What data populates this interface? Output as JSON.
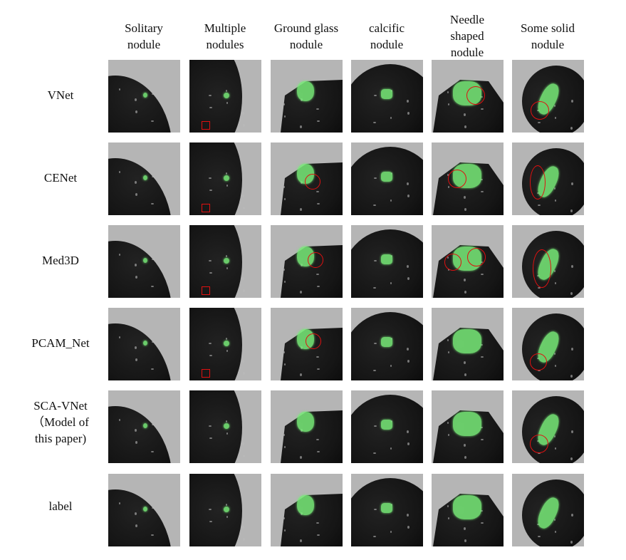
{
  "columns": [
    {
      "line1": "Solitary",
      "line2": "nodule"
    },
    {
      "line1": "Multiple",
      "line2": "nodules"
    },
    {
      "line1": "Ground glass",
      "line2": "nodule"
    },
    {
      "line1": "calcific",
      "line2": "nodule"
    },
    {
      "line1": "Needle",
      "line2": "shaped",
      "line3": "nodule"
    },
    {
      "line1": "Some solid",
      "line2": "nodule"
    }
  ],
  "rows": [
    {
      "line1": "VNet"
    },
    {
      "line1": "CENet"
    },
    {
      "line1": "Med3D"
    },
    {
      "line1": "PCAM_Net"
    },
    {
      "line1": "SCA-VNet",
      "line2": "（Model of",
      "line3": "this paper)"
    },
    {
      "line1": "label"
    }
  ],
  "colors": {
    "segmentation": "#78eb78",
    "annotation": "#e01010",
    "background": "#b5b5b5"
  }
}
